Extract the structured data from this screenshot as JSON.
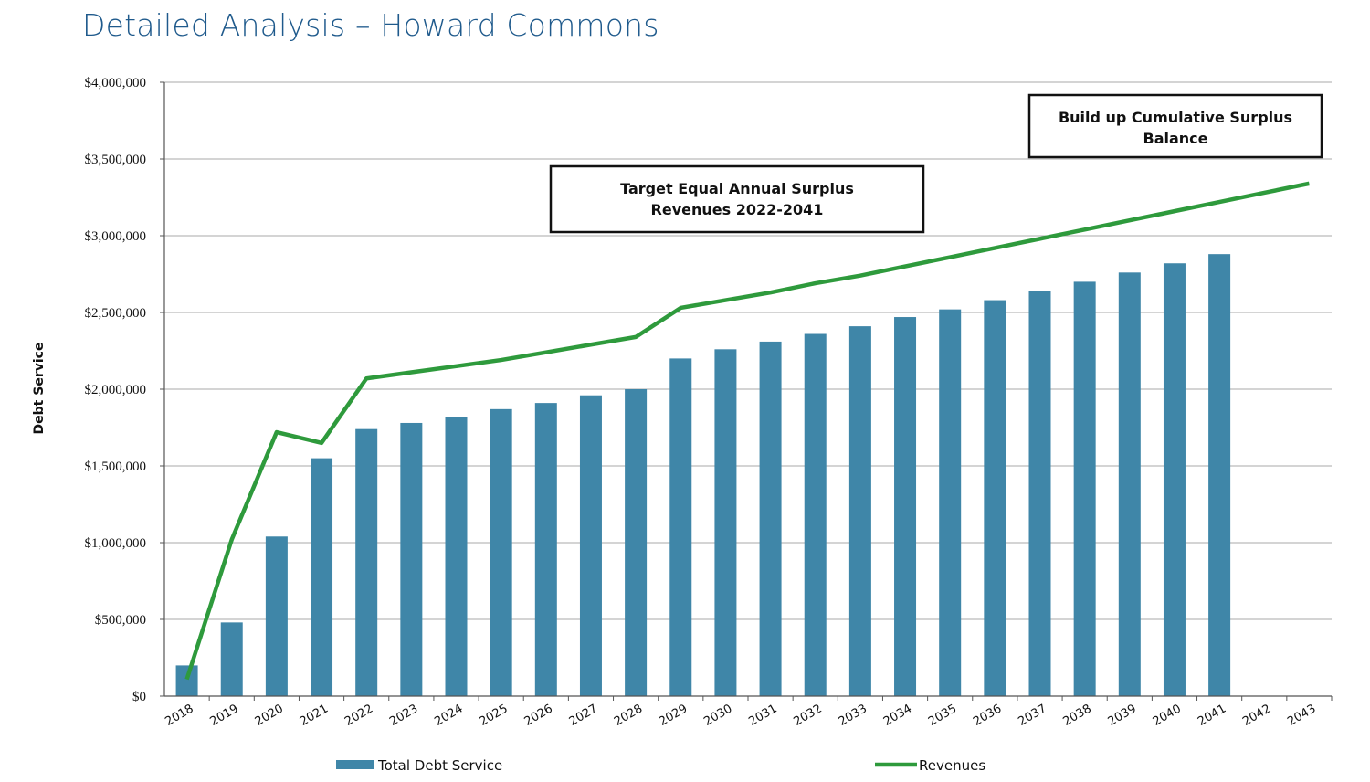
{
  "page": {
    "title": "Detailed Analysis – Howard Commons"
  },
  "chart_data": {
    "type": "bar",
    "title": "Detailed Analysis – Howard Commons",
    "ylabel": "Debt Service",
    "xlabel": "",
    "ylim": [
      0,
      4000000
    ],
    "yticks": [
      0,
      500000,
      1000000,
      1500000,
      2000000,
      2500000,
      3000000,
      3500000,
      4000000
    ],
    "ytick_labels": [
      "$0",
      "$500,000",
      "$1,000,000",
      "$1,500,000",
      "$2,000,000",
      "$2,500,000",
      "$3,000,000",
      "$3,500,000",
      "$4,000,000"
    ],
    "grid": true,
    "categories": [
      "2018",
      "2019",
      "2020",
      "2021",
      "2022",
      "2023",
      "2024",
      "2025",
      "2026",
      "2027",
      "2028",
      "2029",
      "2030",
      "2031",
      "2032",
      "2033",
      "2034",
      "2035",
      "2036",
      "2037",
      "2038",
      "2039",
      "2040",
      "2041",
      "2042",
      "2043"
    ],
    "series": [
      {
        "name": "Total Debt Service",
        "type": "bar",
        "color": "#3f86a8",
        "values": [
          200000,
          480000,
          1040000,
          1550000,
          1740000,
          1780000,
          1820000,
          1870000,
          1910000,
          1960000,
          2000000,
          2200000,
          2260000,
          2310000,
          2360000,
          2410000,
          2470000,
          2520000,
          2580000,
          2640000,
          2700000,
          2760000,
          2820000,
          2880000,
          null,
          null
        ]
      },
      {
        "name": "Revenues",
        "type": "line",
        "color": "#2e9a3c",
        "values": [
          110000,
          1020000,
          1720000,
          1650000,
          2070000,
          2110000,
          2150000,
          2190000,
          2240000,
          2290000,
          2340000,
          2530000,
          2580000,
          2630000,
          2690000,
          2740000,
          2800000,
          2860000,
          2920000,
          2980000,
          3040000,
          3100000,
          3160000,
          3220000,
          3280000,
          3340000
        ]
      }
    ],
    "annotations": [
      {
        "lines": [
          "Target Equal Annual Surplus",
          "Revenues 2022-2041"
        ]
      },
      {
        "lines": [
          "Build up Cumulative Surplus",
          "Balance"
        ]
      }
    ],
    "legend": {
      "placement": "bottom"
    }
  }
}
